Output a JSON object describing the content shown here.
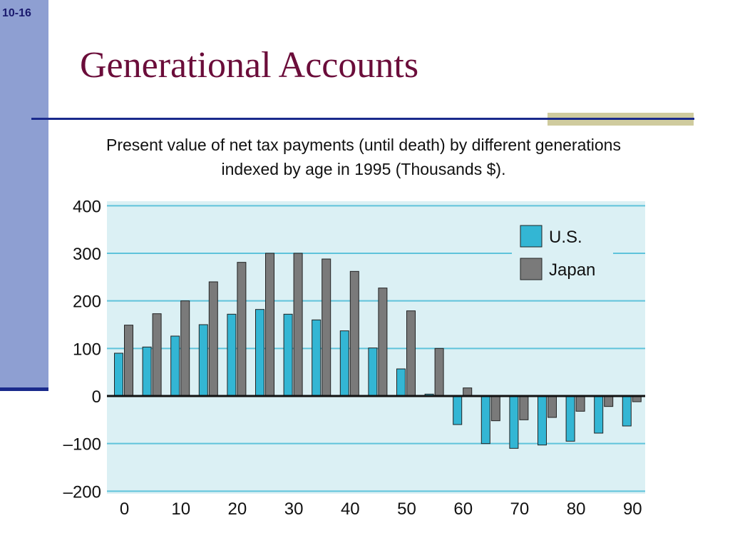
{
  "slide": {
    "number": "10-16",
    "title": "Generational Accounts",
    "subtitle_line1": "Present value of net tax payments (until death) by different generations",
    "subtitle_line2": "indexed by age in 1995 (Thousands $)."
  },
  "chart_data": {
    "type": "bar",
    "title": "",
    "xlabel": "",
    "ylabel": "",
    "ylim": [
      -200,
      400
    ],
    "yticks": [
      "400",
      "300",
      "200",
      "100",
      "0",
      "–100",
      "–200"
    ],
    "ytick_values": [
      400,
      300,
      200,
      100,
      0,
      -100,
      -200
    ],
    "categories": [
      0,
      5,
      10,
      15,
      20,
      25,
      30,
      35,
      40,
      45,
      50,
      55,
      60,
      65,
      70,
      75,
      80,
      85,
      90
    ],
    "xtick_labels": [
      "0",
      "10",
      "20",
      "30",
      "40",
      "50",
      "60",
      "70",
      "80",
      "90"
    ],
    "xtick_values": [
      0,
      10,
      20,
      30,
      40,
      50,
      60,
      70,
      80,
      90
    ],
    "grid": true,
    "legend_position": "top-right",
    "series": [
      {
        "name": "U.S.",
        "color": "#33b6d4",
        "values": [
          90,
          103,
          126,
          150,
          172,
          182,
          172,
          160,
          137,
          101,
          57,
          4,
          -60,
          -100,
          -110,
          -103,
          -95,
          -78,
          -63
        ]
      },
      {
        "name": "Japan",
        "color": "#7a7a7a",
        "values": [
          149,
          173,
          200,
          240,
          281,
          300,
          300,
          288,
          262,
          227,
          179,
          100,
          17,
          -52,
          -50,
          -45,
          -32,
          -22,
          -12
        ]
      }
    ],
    "colors": {
      "plot_background": "#dbf0f4",
      "gridline": "#5fc3db",
      "zero_line": "#111111",
      "bar_outline": "#222222"
    }
  }
}
